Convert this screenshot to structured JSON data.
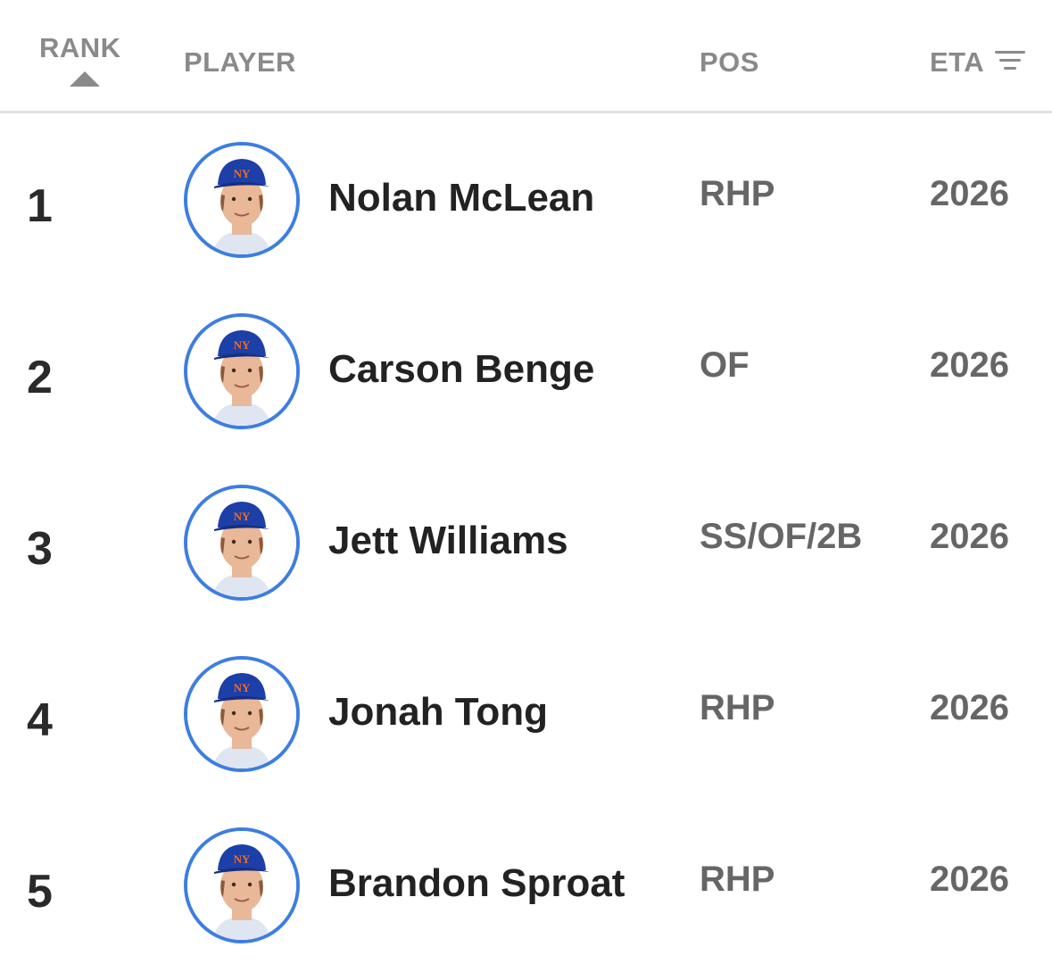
{
  "header": {
    "rank": "RANK",
    "player": "PLAYER",
    "pos": "POS",
    "eta": "ETA",
    "sort_icon": "sort-ascending-icon",
    "filter_icon": "filter-icon"
  },
  "colors": {
    "avatar_ring": "#3d7ee0",
    "cap_blue": "#1c3fa8",
    "logo_orange": "#f26b1f",
    "header_text": "#8a8a8a",
    "name_text": "#222222",
    "value_text": "#666666"
  },
  "players": [
    {
      "rank": "1",
      "name": "Nolan McLean",
      "pos": "RHP",
      "eta": "2026"
    },
    {
      "rank": "2",
      "name": "Carson Benge",
      "pos": "OF",
      "eta": "2026"
    },
    {
      "rank": "3",
      "name": "Jett Williams",
      "pos": "SS/OF/2B",
      "eta": "2026"
    },
    {
      "rank": "4",
      "name": "Jonah Tong",
      "pos": "RHP",
      "eta": "2026"
    },
    {
      "rank": "5",
      "name": "Brandon Sproat",
      "pos": "RHP",
      "eta": "2026"
    }
  ]
}
